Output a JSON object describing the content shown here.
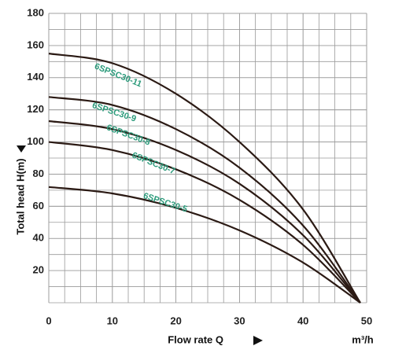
{
  "chart_data": {
    "type": "line",
    "x_label": "Flow rate Q",
    "y_label": "Total head H(m)",
    "x_unit": "m³/h",
    "x": [
      0,
      10,
      20,
      30,
      40,
      49
    ],
    "series": [
      {
        "name": "6SPSC30-11",
        "color": "#2b1a14",
        "values": [
          155,
          149,
          130,
          100,
          58,
          0
        ]
      },
      {
        "name": "6SPSC30-9",
        "color": "#2b1a14",
        "values": [
          128,
          123,
          108,
          84,
          48,
          0
        ]
      },
      {
        "name": "6SPSC30-8",
        "color": "#2b1a14",
        "values": [
          113,
          108,
          95,
          74,
          42,
          0
        ]
      },
      {
        "name": "6SPSC30-7",
        "color": "#2b1a14",
        "values": [
          100,
          95,
          83,
          64,
          36,
          0
        ]
      },
      {
        "name": "6SPSC30-5",
        "color": "#2b1a14",
        "values": [
          72,
          68,
          59,
          45,
          25,
          0
        ]
      }
    ],
    "xlim": [
      0,
      50
    ],
    "ylim": [
      0,
      180
    ],
    "xticks": [
      0,
      10,
      20,
      30,
      40,
      50
    ],
    "yticks": [
      20,
      40,
      60,
      80,
      100,
      120,
      140,
      160,
      180
    ],
    "grid": true
  }
}
